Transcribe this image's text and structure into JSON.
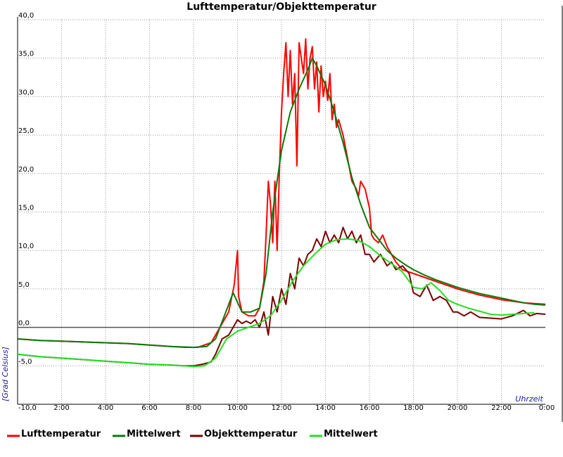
{
  "chart_data": {
    "type": "line",
    "title": "Lufttemperatur/Objekttemperatur",
    "xlabel": "Uhrzeit",
    "ylabel": "[Grad Celsius]",
    "xlim": [
      0,
      24
    ],
    "ylim": [
      -10,
      40
    ],
    "grid": true,
    "legend_position": "bottom",
    "x_tick_labels": [
      "2:00",
      "4:00",
      "6:00",
      "8:00",
      "10:00",
      "12:00",
      "14:00",
      "16:00",
      "18:00",
      "20:00",
      "22:00",
      "0:00"
    ],
    "x_tick_values": [
      2,
      4,
      6,
      8,
      10,
      12,
      14,
      16,
      18,
      20,
      22,
      24
    ],
    "y_tick_labels": [
      "-10,0",
      "-5,0",
      "0,0",
      "5,0",
      "10,0",
      "15,0",
      "20,0",
      "25,0",
      "30,0",
      "35,0",
      "40,0"
    ],
    "y_tick_values": [
      -10,
      -5,
      0,
      5,
      10,
      15,
      20,
      25,
      30,
      35,
      40
    ],
    "series": [
      {
        "name": "Lufttemperatur",
        "color": "#ff0000",
        "x": [
          0,
          1,
          2,
          3,
          4,
          5,
          6,
          7,
          7.6,
          8.2,
          8.8,
          9.2,
          9.6,
          9.85,
          10.0,
          10.05,
          10.2,
          10.5,
          10.8,
          11.0,
          11.2,
          11.3,
          11.4,
          11.5,
          11.6,
          11.7,
          11.8,
          11.9,
          12.0,
          12.1,
          12.2,
          12.3,
          12.4,
          12.5,
          12.6,
          12.7,
          12.8,
          12.9,
          13.0,
          13.1,
          13.2,
          13.3,
          13.4,
          13.5,
          13.6,
          13.7,
          13.8,
          13.9,
          14.0,
          14.1,
          14.2,
          14.3,
          14.4,
          14.5,
          14.6,
          14.8,
          15.0,
          15.2,
          15.4,
          15.5,
          15.6,
          15.8,
          16.0,
          16.1,
          16.2,
          16.4,
          16.6,
          16.8,
          17.0,
          17.2,
          17.5,
          18.0,
          18.5,
          19.0,
          19.5,
          20.0,
          20.5,
          21.0,
          21.5,
          22.0,
          22.5,
          23.0,
          23.5,
          24.0
        ],
        "y": [
          -1.5,
          -1.7,
          -1.8,
          -1.9,
          -2.0,
          -2.1,
          -2.3,
          -2.5,
          -2.6,
          -2.6,
          -2.0,
          0.0,
          2.0,
          5.5,
          10.0,
          4.0,
          2.0,
          1.5,
          1.5,
          2.5,
          6.0,
          12.0,
          19.0,
          16.0,
          11.0,
          19.0,
          10.0,
          20.0,
          28.0,
          33.0,
          37.0,
          30.0,
          36.0,
          29.0,
          33.0,
          21.0,
          37.0,
          35.0,
          33.0,
          37.5,
          31.0,
          35.0,
          36.5,
          31.0,
          34.5,
          28.0,
          34.0,
          30.0,
          32.0,
          29.5,
          33.0,
          27.0,
          29.0,
          26.0,
          27.0,
          25.0,
          22.0,
          19.0,
          18.0,
          17.0,
          19.0,
          18.0,
          15.5,
          12.0,
          11.5,
          11.0,
          12.0,
          10.5,
          9.5,
          8.5,
          7.5,
          7.0,
          6.5,
          6.0,
          5.5,
          5.0,
          4.6,
          4.2,
          3.9,
          3.6,
          3.4,
          3.2,
          3.1,
          3.0
        ]
      },
      {
        "name": "Mittelwert",
        "color": "#0a7a0a",
        "x": [
          0,
          1,
          2,
          3,
          4,
          5,
          6,
          7,
          8,
          8.6,
          9.0,
          9.4,
          9.8,
          10.2,
          10.6,
          11.0,
          11.3,
          11.6,
          12.0,
          12.4,
          12.8,
          13.2,
          13.4,
          13.6,
          14.0,
          14.4,
          14.8,
          15.2,
          15.6,
          16.0,
          16.4,
          16.8,
          17.2,
          17.6,
          18.0,
          18.5,
          19.0,
          19.5,
          20.0,
          20.5,
          21.0,
          21.5,
          22.0,
          22.5,
          23.0,
          23.5,
          24.0
        ],
        "y": [
          -1.5,
          -1.7,
          -1.8,
          -1.9,
          -2.0,
          -2.1,
          -2.3,
          -2.5,
          -2.6,
          -2.5,
          -1.5,
          1.5,
          4.5,
          2.0,
          2.0,
          2.5,
          7.0,
          15.0,
          23.0,
          28.0,
          31.0,
          33.5,
          35.0,
          34.0,
          31.5,
          28.0,
          24.0,
          19.5,
          16.0,
          13.0,
          11.5,
          10.0,
          9.0,
          8.2,
          7.5,
          6.8,
          6.2,
          5.7,
          5.2,
          4.8,
          4.4,
          4.1,
          3.8,
          3.5,
          3.2,
          3.0,
          2.9
        ]
      },
      {
        "name": "Objekttemperatur",
        "color": "#7a0000",
        "x": [
          0,
          1,
          2,
          3,
          4,
          5,
          6,
          7,
          7.5,
          8.0,
          8.4,
          8.8,
          9.0,
          9.3,
          9.6,
          9.8,
          10.0,
          10.2,
          10.4,
          10.6,
          10.8,
          11.0,
          11.2,
          11.4,
          11.6,
          11.8,
          12.0,
          12.2,
          12.4,
          12.6,
          12.8,
          13.0,
          13.2,
          13.4,
          13.6,
          13.8,
          14.0,
          14.2,
          14.4,
          14.6,
          14.8,
          15.0,
          15.2,
          15.4,
          15.6,
          15.8,
          16.0,
          16.2,
          16.5,
          16.8,
          17.0,
          17.2,
          17.5,
          17.8,
          18.0,
          18.3,
          18.6,
          18.9,
          19.2,
          19.5,
          19.8,
          20.0,
          20.3,
          20.6,
          21.0,
          21.5,
          22.0,
          22.5,
          23.0,
          23.3,
          23.6,
          24.0
        ],
        "y": [
          -3.5,
          -3.8,
          -4.0,
          -4.2,
          -4.4,
          -4.6,
          -4.8,
          -4.9,
          -5.0,
          -5.0,
          -4.8,
          -4.5,
          -3.5,
          -1.5,
          -1.0,
          0.0,
          1.0,
          0.5,
          0.8,
          0.5,
          1.0,
          0.0,
          2.0,
          -1.0,
          4.0,
          2.0,
          5.0,
          3.0,
          7.0,
          5.0,
          9.0,
          8.0,
          9.5,
          10.0,
          11.5,
          10.5,
          12.5,
          11.0,
          12.0,
          11.0,
          13.0,
          11.5,
          12.5,
          11.0,
          12.0,
          9.5,
          9.5,
          8.5,
          9.5,
          8.0,
          8.5,
          7.5,
          8.0,
          7.0,
          4.5,
          4.0,
          5.5,
          3.5,
          4.0,
          3.5,
          2.0,
          2.0,
          1.5,
          2.0,
          1.3,
          1.2,
          1.1,
          1.5,
          2.2,
          1.5,
          1.8,
          1.7
        ]
      },
      {
        "name": "Mittelwert",
        "color": "#22e022",
        "x": [
          0,
          1,
          2,
          3,
          4,
          5,
          6,
          7,
          8,
          8.5,
          9.0,
          9.5,
          10.0,
          10.5,
          11.0,
          11.5,
          12.0,
          12.5,
          13.0,
          13.5,
          14.0,
          14.5,
          15.0,
          15.5,
          16.0,
          16.5,
          17.0,
          17.5,
          18.0,
          18.4,
          18.8,
          19.2,
          19.6,
          20.0,
          20.5,
          21.0,
          21.5,
          22.0,
          22.5,
          23.0,
          23.5
        ],
        "y": [
          -3.5,
          -3.8,
          -4.0,
          -4.2,
          -4.4,
          -4.6,
          -4.8,
          -4.9,
          -5.1,
          -5.0,
          -4.0,
          -1.5,
          -0.5,
          0.0,
          0.5,
          1.5,
          3.5,
          6.0,
          8.0,
          9.5,
          10.8,
          11.4,
          11.5,
          11.3,
          10.5,
          9.3,
          8.3,
          7.2,
          5.2,
          5.0,
          5.8,
          4.8,
          3.5,
          3.0,
          2.5,
          2.1,
          1.7,
          1.6,
          1.7,
          1.8,
          1.9
        ]
      }
    ]
  }
}
